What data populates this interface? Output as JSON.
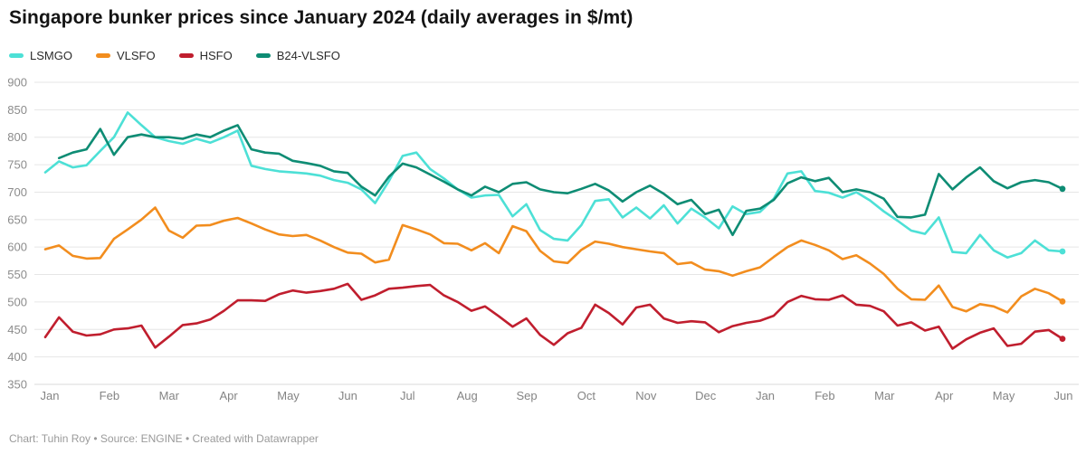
{
  "header": {
    "title": "Singapore bunker prices since January 2024 (daily averages in $/mt)"
  },
  "footer": {
    "credit": "Chart: Tuhin Roy • Source: ENGINE • Created with Datawrapper"
  },
  "chart_data": {
    "type": "line",
    "title": "Singapore bunker prices since January 2024 (daily averages in $/mt)",
    "xlabel": "",
    "ylabel": "",
    "ylim": [
      350,
      900
    ],
    "yticks": [
      350,
      400,
      450,
      500,
      550,
      600,
      650,
      700,
      750,
      800,
      850,
      900
    ],
    "xticks": [
      "Jan",
      "Feb",
      "Mar",
      "Apr",
      "May",
      "Jun",
      "Jul",
      "Aug",
      "Sep",
      "Oct",
      "Nov",
      "Dec",
      "Jan",
      "Feb",
      "Mar",
      "Apr",
      "May",
      "Jun"
    ],
    "grid": true,
    "legend_position": "top",
    "line_end_markers": true,
    "x": [
      "2024-01-01",
      "2024-01-08",
      "2024-01-15",
      "2024-01-22",
      "2024-01-29",
      "2024-02-05",
      "2024-02-12",
      "2024-02-19",
      "2024-02-26",
      "2024-03-04",
      "2024-03-11",
      "2024-03-18",
      "2024-03-25",
      "2024-04-01",
      "2024-04-08",
      "2024-04-15",
      "2024-04-22",
      "2024-04-29",
      "2024-05-06",
      "2024-05-13",
      "2024-05-20",
      "2024-05-27",
      "2024-06-03",
      "2024-06-10",
      "2024-06-17",
      "2024-06-24",
      "2024-07-01",
      "2024-07-08",
      "2024-07-15",
      "2024-07-22",
      "2024-07-29",
      "2024-08-05",
      "2024-08-12",
      "2024-08-19",
      "2024-08-26",
      "2024-09-02",
      "2024-09-09",
      "2024-09-16",
      "2024-09-23",
      "2024-09-30",
      "2024-10-07",
      "2024-10-14",
      "2024-10-21",
      "2024-10-28",
      "2024-11-04",
      "2024-11-11",
      "2024-11-18",
      "2024-11-25",
      "2024-12-02",
      "2024-12-09",
      "2024-12-16",
      "2024-12-23",
      "2024-12-30",
      "2025-01-06",
      "2025-01-13",
      "2025-01-20",
      "2025-01-27",
      "2025-02-03",
      "2025-02-10",
      "2025-02-17",
      "2025-02-24",
      "2025-03-03",
      "2025-03-10",
      "2025-03-17",
      "2025-03-24",
      "2025-03-31",
      "2025-04-07",
      "2025-04-14",
      "2025-04-21",
      "2025-04-28",
      "2025-05-05",
      "2025-05-12",
      "2025-05-19",
      "2025-05-26",
      "2025-06-02"
    ],
    "series": [
      {
        "name": "LSMGO",
        "color": "#4de0d6",
        "values": [
          736,
          756,
          745,
          749,
          775,
          800,
          845,
          822,
          800,
          793,
          788,
          797,
          790,
          800,
          812,
          748,
          742,
          738,
          736,
          734,
          730,
          722,
          717,
          705,
          680,
          720,
          766,
          772,
          742,
          725,
          705,
          690,
          694,
          695,
          656,
          678,
          631,
          615,
          612,
          640,
          684,
          687,
          654,
          672,
          652,
          676,
          643,
          670,
          654,
          634,
          674,
          660,
          664,
          688,
          734,
          738,
          702,
          699,
          690,
          700,
          685,
          665,
          648,
          630,
          624,
          654,
          591,
          589,
          622,
          594,
          581,
          589,
          612,
          594,
          592
        ]
      },
      {
        "name": "VLSFO",
        "color": "#f28d1e",
        "values": [
          596,
          603,
          584,
          579,
          580,
          615,
          632,
          650,
          672,
          630,
          617,
          639,
          640,
          648,
          653,
          643,
          632,
          623,
          620,
          622,
          612,
          600,
          590,
          588,
          572,
          577,
          640,
          632,
          623,
          607,
          606,
          594,
          607,
          589,
          638,
          629,
          593,
          574,
          571,
          595,
          610,
          606,
          600,
          596,
          592,
          589,
          569,
          572,
          559,
          556,
          548,
          556,
          563,
          582,
          600,
          612,
          604,
          594,
          578,
          585,
          570,
          551,
          524,
          505,
          504,
          530,
          491,
          483,
          496,
          492,
          481,
          510,
          524,
          516,
          501
        ]
      },
      {
        "name": "HSFO",
        "color": "#c01e2e",
        "values": [
          436,
          472,
          446,
          439,
          441,
          450,
          452,
          457,
          417,
          437,
          458,
          461,
          468,
          484,
          503,
          503,
          502,
          514,
          521,
          517,
          520,
          524,
          533,
          504,
          512,
          524,
          526,
          529,
          531,
          512,
          500,
          484,
          492,
          474,
          455,
          470,
          440,
          422,
          443,
          453,
          495,
          480,
          459,
          490,
          495,
          470,
          462,
          465,
          463,
          445,
          456,
          462,
          466,
          475,
          500,
          511,
          505,
          504,
          512,
          495,
          493,
          483,
          457,
          463,
          448,
          455,
          415,
          432,
          444,
          452,
          420,
          424,
          446,
          449,
          433
        ]
      },
      {
        "name": "B24-VLSFO",
        "color": "#0e8c74",
        "values": [
          null,
          762,
          772,
          778,
          815,
          768,
          800,
          805,
          800,
          800,
          797,
          805,
          800,
          812,
          822,
          778,
          772,
          770,
          757,
          753,
          748,
          738,
          735,
          710,
          694,
          728,
          752,
          745,
          732,
          719,
          705,
          694,
          710,
          700,
          715,
          718,
          705,
          700,
          698,
          706,
          715,
          703,
          683,
          700,
          712,
          697,
          678,
          686,
          660,
          668,
          622,
          666,
          670,
          686,
          716,
          727,
          720,
          726,
          700,
          705,
          700,
          688,
          655,
          654,
          659,
          733,
          705,
          727,
          745,
          720,
          707,
          718,
          722,
          718,
          706
        ]
      }
    ]
  }
}
